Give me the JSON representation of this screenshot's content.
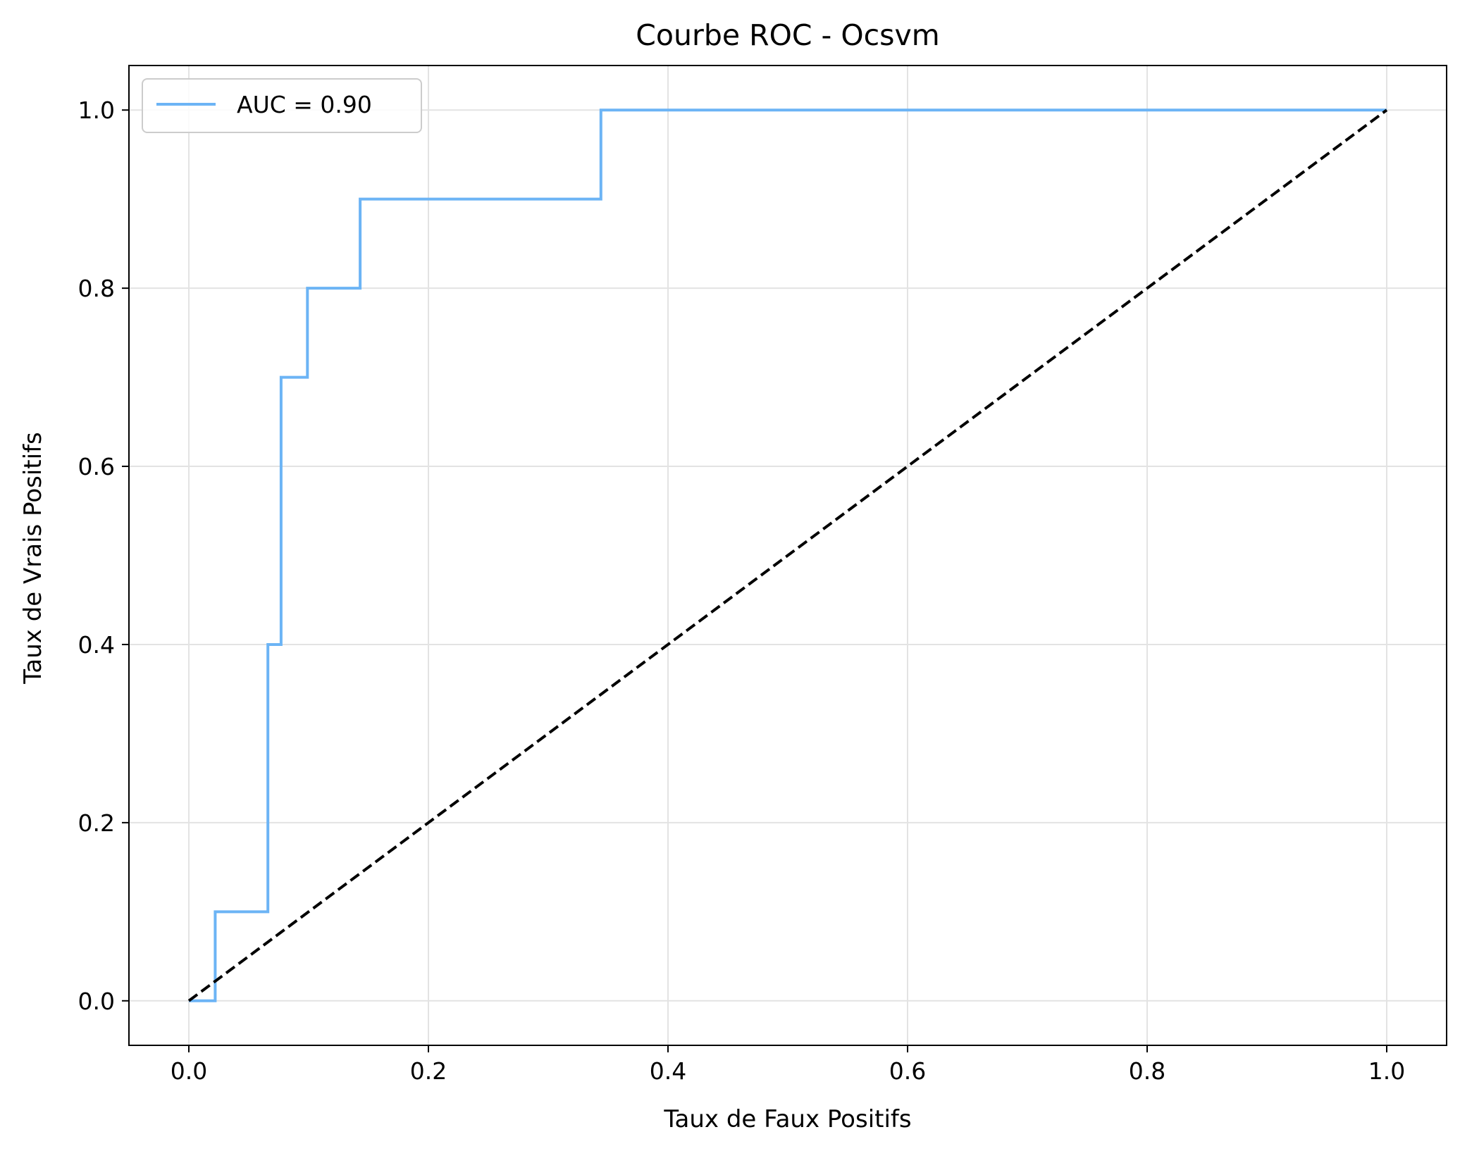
{
  "colors": {
    "roc_line": "#6cb4f5",
    "diagonal": "#000000",
    "grid": "#e3e3e3",
    "axes": "#000000",
    "background": "#ffffff"
  },
  "chart_data": {
    "type": "line",
    "title": "Courbe ROC - Ocsvm",
    "xlabel": "Taux de Faux Positifs",
    "ylabel": "Taux de Vrais Positifs",
    "xlim": [
      -0.05,
      1.05
    ],
    "ylim": [
      -0.05,
      1.05
    ],
    "grid": true,
    "legend_position": "upper-left",
    "xticks": [
      0.0,
      0.2,
      0.4,
      0.6,
      0.8,
      1.0
    ],
    "yticks": [
      0.0,
      0.2,
      0.4,
      0.6,
      0.8,
      1.0
    ],
    "xtick_labels": [
      "0.0",
      "0.2",
      "0.4",
      "0.6",
      "0.8",
      "1.0"
    ],
    "ytick_labels": [
      "0.0",
      "0.2",
      "0.4",
      "0.6",
      "0.8",
      "1.0"
    ],
    "series": [
      {
        "name": "AUC = 0.90",
        "style": "solid",
        "color": "#6cb4f5",
        "x": [
          0.0,
          0.022,
          0.022,
          0.066,
          0.066,
          0.077,
          0.077,
          0.099,
          0.099,
          0.143,
          0.143,
          0.344,
          0.344,
          1.0
        ],
        "y": [
          0.0,
          0.0,
          0.1,
          0.1,
          0.4,
          0.4,
          0.7,
          0.7,
          0.8,
          0.8,
          0.9,
          0.9,
          1.0,
          1.0
        ]
      },
      {
        "style": "dashed",
        "color": "#000000",
        "x": [
          0.0,
          1.0
        ],
        "y": [
          0.0,
          1.0
        ]
      }
    ]
  }
}
